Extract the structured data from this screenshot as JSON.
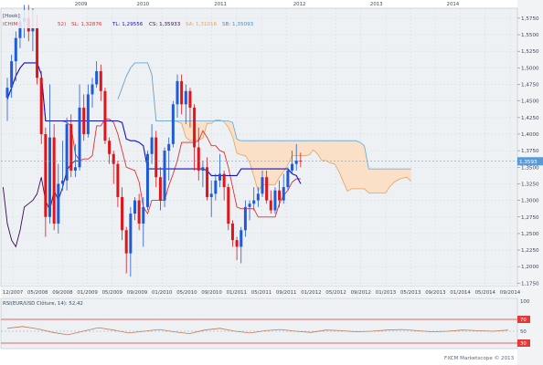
{
  "colors": {
    "plot_bg": "#eef1f4",
    "axis_bg": "#f2f3f5",
    "grid": "#d5dbe3",
    "bull": "#1f5bd6",
    "bear": "#e0141b",
    "tenkan": "#e03030",
    "kijun": "#1010c8",
    "chikou": "#3a0a55",
    "span_a": "#e8a060",
    "span_b": "#5aa8e0",
    "cloud_bull": "#bcdcf0",
    "cloud_bear": "#fbe0c8",
    "price_tag_bg": "#5a9ad8",
    "rsi_line": "#c07a56",
    "rsi_level": "#e03a3a",
    "marker": "#f0a020"
  },
  "header": {
    "symbol": "[Hook]",
    "indicator_prefix": "ICHIM",
    "params": "52)",
    "sl": "SL: 1,32876",
    "tl": "TL: 1,29556",
    "cs": "CS: 1,35933",
    "sa": "SA: 1,31016",
    "sb": "SB: 1,35093"
  },
  "rsi": {
    "header": "RSI(EUR/USD Clôture, 14): 52,42",
    "upper": "70",
    "mid": "50",
    "lower": "30",
    "max": "100",
    "values": [
      55,
      58,
      54,
      48,
      44,
      50,
      56,
      52,
      47,
      50,
      53,
      49,
      46,
      52,
      55,
      50,
      47,
      51,
      53,
      50,
      48,
      52,
      51,
      49,
      50,
      52,
      53,
      51,
      49,
      50,
      52,
      51,
      50,
      52
    ]
  },
  "price_tag": "1,3593",
  "footer": "FXCM Marketscope © 2013",
  "chart_data": {
    "type": "candlestick",
    "title": "",
    "x_axis": {
      "years": [
        "2009",
        "2010",
        "2011",
        "2012",
        "2013",
        "2014"
      ],
      "ticks": [
        "12/2007",
        "05/2008",
        "09/2008",
        "01/2009",
        "05/2009",
        "09/2009",
        "01/2010",
        "05/2010",
        "09/2010",
        "01/2011",
        "05/2011",
        "09/2011",
        "01/2012",
        "05/2012",
        "09/2012",
        "01/2013",
        "05/2013",
        "09/2013",
        "01/2014",
        "05/2014",
        "09/2014"
      ]
    },
    "y_axis": {
      "ylim": [
        1.17,
        1.59
      ],
      "ticks": [
        "1,5750",
        "1,5500",
        "1,5250",
        "1,5000",
        "1,4750",
        "1,4500",
        "1,4250",
        "1,4000",
        "1,3750",
        "1,3500",
        "1,3250",
        "1,3000",
        "1,2750",
        "1,2500",
        "1,2250",
        "1,2000",
        "1,1750"
      ]
    },
    "candles": [
      {
        "o": 1.455,
        "h": 1.485,
        "l": 1.42,
        "c": 1.47
      },
      {
        "o": 1.47,
        "h": 1.52,
        "l": 1.455,
        "c": 1.51
      },
      {
        "o": 1.51,
        "h": 1.555,
        "l": 1.48,
        "c": 1.545
      },
      {
        "o": 1.545,
        "h": 1.58,
        "l": 1.53,
        "c": 1.57
      },
      {
        "o": 1.57,
        "h": 1.595,
        "l": 1.545,
        "c": 1.575
      },
      {
        "o": 1.575,
        "h": 1.595,
        "l": 1.54,
        "c": 1.555
      },
      {
        "o": 1.555,
        "h": 1.59,
        "l": 1.525,
        "c": 1.56
      },
      {
        "o": 1.56,
        "h": 1.58,
        "l": 1.475,
        "c": 1.485
      },
      {
        "o": 1.485,
        "h": 1.495,
        "l": 1.385,
        "c": 1.4
      },
      {
        "o": 1.4,
        "h": 1.41,
        "l": 1.245,
        "c": 1.275
      },
      {
        "o": 1.275,
        "h": 1.475,
        "l": 1.265,
        "c": 1.395
      },
      {
        "o": 1.395,
        "h": 1.415,
        "l": 1.255,
        "c": 1.265
      },
      {
        "o": 1.265,
        "h": 1.355,
        "l": 1.25,
        "c": 1.325
      },
      {
        "o": 1.325,
        "h": 1.39,
        "l": 1.315,
        "c": 1.33
      },
      {
        "o": 1.33,
        "h": 1.425,
        "l": 1.315,
        "c": 1.415
      },
      {
        "o": 1.415,
        "h": 1.43,
        "l": 1.335,
        "c": 1.345
      },
      {
        "o": 1.345,
        "h": 1.385,
        "l": 1.335,
        "c": 1.35
      },
      {
        "o": 1.35,
        "h": 1.475,
        "l": 1.345,
        "c": 1.44
      },
      {
        "o": 1.44,
        "h": 1.46,
        "l": 1.39,
        "c": 1.4
      },
      {
        "o": 1.4,
        "h": 1.475,
        "l": 1.395,
        "c": 1.46
      },
      {
        "o": 1.46,
        "h": 1.485,
        "l": 1.44,
        "c": 1.475
      },
      {
        "o": 1.475,
        "h": 1.51,
        "l": 1.47,
        "c": 1.495
      },
      {
        "o": 1.495,
        "h": 1.505,
        "l": 1.45,
        "c": 1.465
      },
      {
        "o": 1.465,
        "h": 1.47,
        "l": 1.385,
        "c": 1.39
      },
      {
        "o": 1.39,
        "h": 1.395,
        "l": 1.355,
        "c": 1.37
      },
      {
        "o": 1.37,
        "h": 1.375,
        "l": 1.325,
        "c": 1.355
      },
      {
        "o": 1.355,
        "h": 1.36,
        "l": 1.29,
        "c": 1.305
      },
      {
        "o": 1.305,
        "h": 1.32,
        "l": 1.24,
        "c": 1.255
      },
      {
        "o": 1.255,
        "h": 1.26,
        "l": 1.19,
        "c": 1.22
      },
      {
        "o": 1.22,
        "h": 1.29,
        "l": 1.185,
        "c": 1.28
      },
      {
        "o": 1.28,
        "h": 1.305,
        "l": 1.27,
        "c": 1.3
      },
      {
        "o": 1.3,
        "h": 1.31,
        "l": 1.255,
        "c": 1.265
      },
      {
        "o": 1.265,
        "h": 1.305,
        "l": 1.23,
        "c": 1.29
      },
      {
        "o": 1.29,
        "h": 1.375,
        "l": 1.285,
        "c": 1.37
      },
      {
        "o": 1.37,
        "h": 1.415,
        "l": 1.355,
        "c": 1.395
      },
      {
        "o": 1.395,
        "h": 1.405,
        "l": 1.32,
        "c": 1.335
      },
      {
        "o": 1.335,
        "h": 1.35,
        "l": 1.285,
        "c": 1.3
      },
      {
        "o": 1.3,
        "h": 1.38,
        "l": 1.29,
        "c": 1.375
      },
      {
        "o": 1.375,
        "h": 1.395,
        "l": 1.33,
        "c": 1.385
      },
      {
        "o": 1.385,
        "h": 1.45,
        "l": 1.38,
        "c": 1.445
      },
      {
        "o": 1.445,
        "h": 1.49,
        "l": 1.425,
        "c": 1.48
      },
      {
        "o": 1.48,
        "h": 1.49,
        "l": 1.43,
        "c": 1.445
      },
      {
        "o": 1.445,
        "h": 1.475,
        "l": 1.415,
        "c": 1.465
      },
      {
        "o": 1.465,
        "h": 1.47,
        "l": 1.41,
        "c": 1.44
      },
      {
        "o": 1.44,
        "h": 1.445,
        "l": 1.345,
        "c": 1.38
      },
      {
        "o": 1.38,
        "h": 1.41,
        "l": 1.33,
        "c": 1.345
      },
      {
        "o": 1.345,
        "h": 1.36,
        "l": 1.32,
        "c": 1.35
      },
      {
        "o": 1.35,
        "h": 1.365,
        "l": 1.3,
        "c": 1.305
      },
      {
        "o": 1.305,
        "h": 1.33,
        "l": 1.275,
        "c": 1.31
      },
      {
        "o": 1.31,
        "h": 1.34,
        "l": 1.3,
        "c": 1.33
      },
      {
        "o": 1.33,
        "h": 1.37,
        "l": 1.32,
        "c": 1.34
      },
      {
        "o": 1.34,
        "h": 1.345,
        "l": 1.3,
        "c": 1.32
      },
      {
        "o": 1.32,
        "h": 1.325,
        "l": 1.255,
        "c": 1.265
      },
      {
        "o": 1.265,
        "h": 1.27,
        "l": 1.23,
        "c": 1.24
      },
      {
        "o": 1.24,
        "h": 1.245,
        "l": 1.21,
        "c": 1.23
      },
      {
        "o": 1.23,
        "h": 1.26,
        "l": 1.205,
        "c": 1.255
      },
      {
        "o": 1.255,
        "h": 1.3,
        "l": 1.245,
        "c": 1.29
      },
      {
        "o": 1.29,
        "h": 1.3,
        "l": 1.27,
        "c": 1.295
      },
      {
        "o": 1.295,
        "h": 1.32,
        "l": 1.285,
        "c": 1.3
      },
      {
        "o": 1.3,
        "h": 1.32,
        "l": 1.29,
        "c": 1.31
      },
      {
        "o": 1.31,
        "h": 1.345,
        "l": 1.305,
        "c": 1.335
      },
      {
        "o": 1.335,
        "h": 1.345,
        "l": 1.295,
        "c": 1.3
      },
      {
        "o": 1.3,
        "h": 1.315,
        "l": 1.28,
        "c": 1.285
      },
      {
        "o": 1.285,
        "h": 1.32,
        "l": 1.28,
        "c": 1.315
      },
      {
        "o": 1.315,
        "h": 1.33,
        "l": 1.29,
        "c": 1.3
      },
      {
        "o": 1.3,
        "h": 1.34,
        "l": 1.295,
        "c": 1.32
      },
      {
        "o": 1.32,
        "h": 1.35,
        "l": 1.315,
        "c": 1.345
      },
      {
        "o": 1.345,
        "h": 1.375,
        "l": 1.34,
        "c": 1.355
      },
      {
        "o": 1.355,
        "h": 1.385,
        "l": 1.345,
        "c": 1.36
      },
      {
        "o": 1.36,
        "h": 1.372,
        "l": 1.35,
        "c": 1.359
      }
    ]
  }
}
